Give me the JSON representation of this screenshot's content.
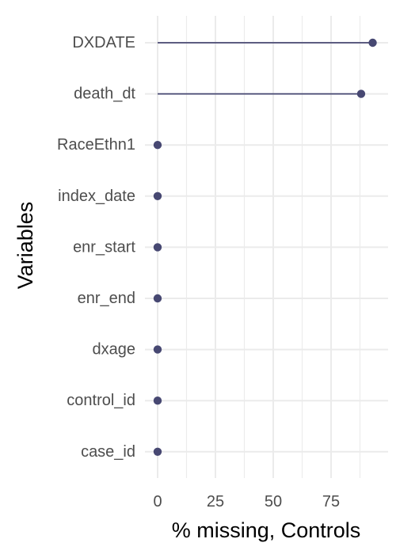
{
  "chart_data": {
    "type": "lollipop",
    "xlabel": "% missing, Controls",
    "ylabel": "Variables",
    "xlim": [
      0,
      100
    ],
    "x_ticks": [
      0,
      25,
      50,
      75
    ],
    "grid": true,
    "legend": "none",
    "colors": {
      "mark": "#474872",
      "grid": "#ebebeb",
      "tick_text": "#4d4d4d",
      "title_text": "#000000"
    },
    "categories": [
      "DXDATE",
      "death_dt",
      "RaceEthn1",
      "index_date",
      "enr_start",
      "enr_end",
      "dxage",
      "control_id",
      "case_id"
    ],
    "values": [
      93,
      88,
      0,
      0,
      0,
      0,
      0,
      0,
      0
    ]
  }
}
